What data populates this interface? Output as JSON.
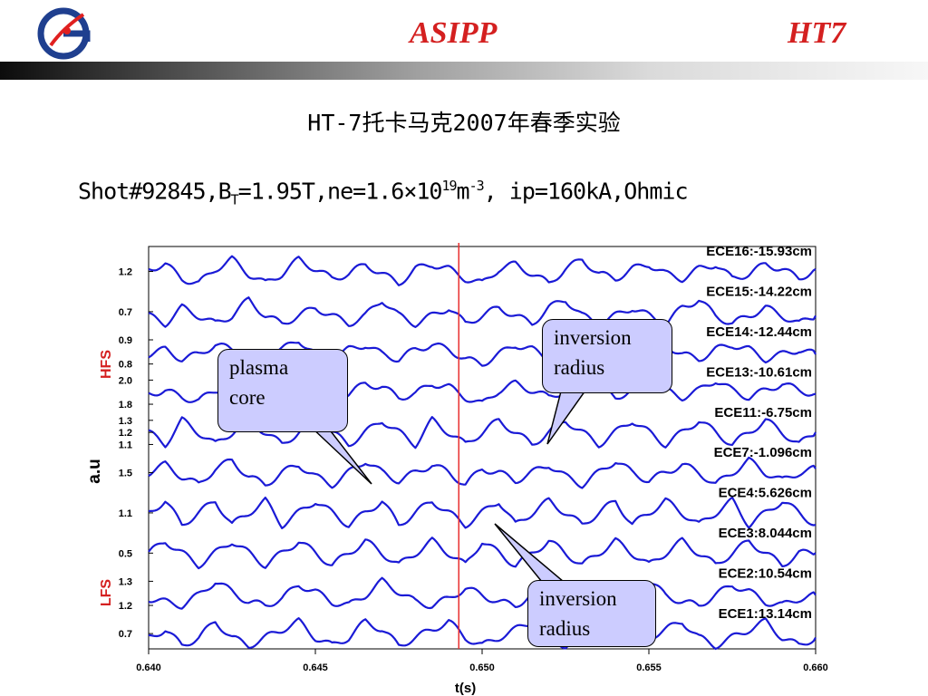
{
  "header": {
    "left": "ASIPP",
    "right": "HT7",
    "logo_color": "#1f3f8f",
    "logo_accent": "#e02020",
    "title_color": "#d42020"
  },
  "subtitle": "HT-7托卡马克2007年春季实验",
  "shot": {
    "prefix": "Shot#92845,B",
    "sub": "T",
    "mid": "=1.95T,ne=1.6×10",
    "sup1": "19",
    "m": "m",
    "sup2": "-3",
    "suffix": ",  ip=160kA,Ohmic"
  },
  "callouts": {
    "core": [
      "plasma",
      "core"
    ],
    "inv1": [
      "inversion",
      "radius"
    ],
    "inv2": [
      "inversion",
      "radius"
    ]
  },
  "chart_data": {
    "type": "line",
    "xlabel": "t(s)",
    "ylabel": "a.u",
    "xlim": [
      0.64,
      0.66
    ],
    "x_ticks": [
      "0.640",
      "0.645",
      "0.650",
      "0.655",
      "0.660"
    ],
    "marker_line_x": 0.6493,
    "side_labels": {
      "hfs": "HFS",
      "lfs": "LFS"
    },
    "colors": {
      "trace": "#1a1ad6",
      "marker": "#e83030",
      "side": "#d42020"
    },
    "x": [
      0.64,
      0.6405,
      0.641,
      0.6415,
      0.642,
      0.6425,
      0.643,
      0.6435,
      0.644,
      0.6445,
      0.645,
      0.6455,
      0.646,
      0.6465,
      0.647,
      0.6475,
      0.648,
      0.6485,
      0.649,
      0.6495,
      0.65,
      0.6505,
      0.651,
      0.6515,
      0.652,
      0.6525,
      0.653,
      0.6535,
      0.654,
      0.6545,
      0.655,
      0.6555,
      0.656,
      0.6565,
      0.657,
      0.6575,
      0.658,
      0.6585,
      0.659,
      0.6595,
      0.66
    ],
    "series": [
      {
        "name": "ECE16:-15.93cm",
        "ticks": [
          "1.2"
        ],
        "values": [
          1.21,
          1.22,
          1.19,
          1.18,
          1.21,
          1.23,
          1.2,
          1.18,
          1.2,
          1.23,
          1.21,
          1.19,
          1.2,
          1.22,
          1.2,
          1.18,
          1.21,
          1.22,
          1.21,
          1.19,
          1.18,
          1.21,
          1.22,
          1.2,
          1.18,
          1.21,
          1.23,
          1.2,
          1.19,
          1.21,
          1.22,
          1.2,
          1.19,
          1.21,
          1.22,
          1.19,
          1.2,
          1.22,
          1.21,
          1.19,
          1.21
        ]
      },
      {
        "name": "ECE15:-14.22cm",
        "ticks": [
          "0.7"
        ],
        "values": [
          0.7,
          0.69,
          0.71,
          0.7,
          0.69,
          0.7,
          0.72,
          0.7,
          0.69,
          0.7,
          0.71,
          0.7,
          0.69,
          0.7,
          0.72,
          0.7,
          0.69,
          0.7,
          0.71,
          0.69,
          0.7,
          0.71,
          0.7,
          0.69,
          0.71,
          0.72,
          0.7,
          0.69,
          0.7,
          0.71,
          0.7,
          0.69,
          0.71,
          0.72,
          0.7,
          0.69,
          0.7,
          0.71,
          0.7,
          0.69,
          0.7
        ]
      },
      {
        "name": "ECE14:-12.44cm",
        "ticks": [
          "0.9",
          "0.8"
        ],
        "values": [
          0.85,
          0.86,
          0.84,
          0.85,
          0.87,
          0.86,
          0.84,
          0.85,
          0.86,
          0.88,
          0.85,
          0.84,
          0.86,
          0.87,
          0.85,
          0.84,
          0.86,
          0.87,
          0.86,
          0.84,
          0.83,
          0.85,
          0.87,
          0.86,
          0.84,
          0.85,
          0.86,
          0.88,
          0.85,
          0.84,
          0.86,
          0.87,
          0.85,
          0.84,
          0.86,
          0.87,
          0.86,
          0.84,
          0.85,
          0.86,
          0.85
        ]
      },
      {
        "name": "ECE13:-10.61cm",
        "ticks": [
          "2.0",
          "1.8"
        ],
        "values": [
          1.89,
          1.9,
          1.88,
          1.87,
          1.9,
          1.92,
          1.89,
          1.88,
          1.9,
          1.93,
          1.9,
          1.88,
          1.89,
          1.92,
          1.91,
          1.88,
          1.89,
          1.92,
          1.91,
          1.88,
          1.86,
          1.9,
          1.92,
          1.9,
          1.88,
          1.9,
          1.93,
          1.91,
          1.88,
          1.9,
          1.92,
          1.9,
          1.88,
          1.9,
          1.93,
          1.9,
          1.88,
          1.9,
          1.92,
          1.9,
          1.89
        ]
      },
      {
        "name": "ECE11:-6.75cm",
        "ticks": [
          "1.3",
          "1.2",
          "1.1"
        ],
        "values": [
          1.2,
          1.19,
          1.21,
          1.2,
          1.19,
          1.2,
          1.21,
          1.2,
          1.19,
          1.2,
          1.21,
          1.2,
          1.19,
          1.2,
          1.21,
          1.2,
          1.19,
          1.21,
          1.2,
          1.19,
          1.2,
          1.21,
          1.2,
          1.19,
          1.2,
          1.21,
          1.2,
          1.19,
          1.2,
          1.21,
          1.2,
          1.19,
          1.2,
          1.21,
          1.2,
          1.19,
          1.2,
          1.21,
          1.2,
          1.19,
          1.2
        ]
      },
      {
        "name": "ECE7:-1.096cm",
        "ticks": [
          "1.5"
        ],
        "values": [
          1.5,
          1.52,
          1.49,
          1.47,
          1.51,
          1.53,
          1.49,
          1.47,
          1.5,
          1.52,
          1.49,
          1.47,
          1.5,
          1.53,
          1.5,
          1.48,
          1.5,
          1.52,
          1.5,
          1.47,
          1.51,
          1.5,
          1.48,
          1.5,
          1.52,
          1.49,
          1.47,
          1.5,
          1.53,
          1.5,
          1.48,
          1.5,
          1.52,
          1.5,
          1.47,
          1.5,
          1.53,
          1.5,
          1.48,
          1.5,
          1.51
        ]
      },
      {
        "name": "ECE4:5.626cm",
        "ticks": [
          "1.1"
        ],
        "values": [
          1.1,
          1.11,
          1.09,
          1.1,
          1.11,
          1.09,
          1.1,
          1.11,
          1.09,
          1.1,
          1.11,
          1.1,
          1.09,
          1.1,
          1.11,
          1.09,
          1.1,
          1.11,
          1.1,
          1.09,
          1.1,
          1.11,
          1.09,
          1.1,
          1.11,
          1.1,
          1.09,
          1.1,
          1.11,
          1.09,
          1.1,
          1.11,
          1.1,
          1.09,
          1.1,
          1.11,
          1.09,
          1.1,
          1.11,
          1.1,
          1.09
        ]
      },
      {
        "name": "ECE3:8.044cm",
        "ticks": [
          "0.5"
        ],
        "values": [
          0.5,
          0.51,
          0.5,
          0.49,
          0.5,
          0.51,
          0.5,
          0.49,
          0.5,
          0.51,
          0.5,
          0.49,
          0.5,
          0.51,
          0.5,
          0.49,
          0.5,
          0.51,
          0.5,
          0.49,
          0.51,
          0.5,
          0.49,
          0.5,
          0.51,
          0.5,
          0.49,
          0.5,
          0.51,
          0.5,
          0.49,
          0.5,
          0.51,
          0.5,
          0.49,
          0.5,
          0.51,
          0.5,
          0.49,
          0.5,
          0.5
        ]
      },
      {
        "name": "ECE2:10.54cm",
        "ticks": [
          "1.3",
          "1.2"
        ],
        "values": [
          1.22,
          1.21,
          1.2,
          1.23,
          1.27,
          1.24,
          1.21,
          1.2,
          1.22,
          1.26,
          1.24,
          1.21,
          1.2,
          1.23,
          1.27,
          1.24,
          1.21,
          1.2,
          1.22,
          1.25,
          1.23,
          1.21,
          1.2,
          1.23,
          1.26,
          1.24,
          1.21,
          1.2,
          1.22,
          1.25,
          1.27,
          1.23,
          1.21,
          1.2,
          1.23,
          1.26,
          1.24,
          1.21,
          1.2,
          1.22,
          1.23
        ]
      },
      {
        "name": "ECE1:13.14cm",
        "ticks": [
          "0.7"
        ],
        "values": [
          0.7,
          0.71,
          0.69,
          0.7,
          0.72,
          0.7,
          0.69,
          0.7,
          0.71,
          0.72,
          0.7,
          0.69,
          0.7,
          0.72,
          0.71,
          0.69,
          0.7,
          0.71,
          0.72,
          0.7,
          0.69,
          0.7,
          0.71,
          0.72,
          0.7,
          0.69,
          0.7,
          0.72,
          0.71,
          0.69,
          0.7,
          0.71,
          0.72,
          0.7,
          0.69,
          0.7,
          0.71,
          0.72,
          0.7,
          0.69,
          0.7
        ]
      }
    ]
  }
}
